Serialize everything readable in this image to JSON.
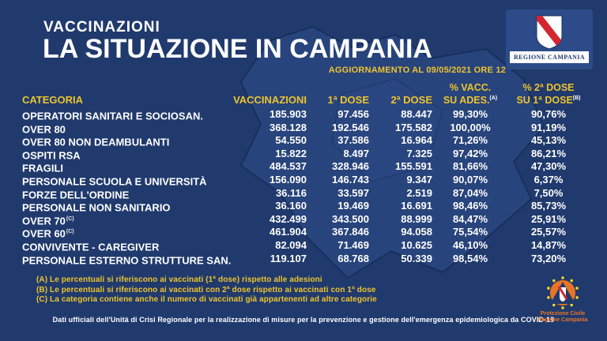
{
  "colors": {
    "background": "#203a6d",
    "accent_yellow": "#eec32e",
    "text_white": "#ffffff",
    "crest_red": "#d22630",
    "logo_panel_blue": "#2c4b88",
    "civil_protection_orange": "#e87425"
  },
  "header": {
    "kicker": "VACCINAZIONI",
    "title": "LA SITUAZIONE IN CAMPANIA",
    "update": "AGGIORNAMENTO AL 09/05/2021 ORE 12"
  },
  "region_logo": {
    "label": "REGIONE CAMPANIA"
  },
  "table": {
    "head": {
      "categoria": "CATEGORIA",
      "vaccinazioni": "VACCINAZIONI",
      "dose1": "1ª DOSE",
      "dose2": "2ª DOSE",
      "pct_vacc_l1": "% VACC.",
      "pct_vacc_l2": "SU ADES.",
      "pct_vacc_sup": "(A)",
      "pct_dose_l1": "% 2ª DOSE",
      "pct_dose_l2": "SU 1ª DOSE",
      "pct_dose_sup": "(B)"
    },
    "rows": [
      {
        "categoria": "OPERATORI SANITARI E SOCIOSAN.",
        "sup": "",
        "vaccinazioni": "185.903",
        "dose1": "97.456",
        "dose2": "88.447",
        "pct_vacc": "99,30%",
        "pct_dose": "90,76%"
      },
      {
        "categoria": "OVER 80",
        "sup": "",
        "vaccinazioni": "368.128",
        "dose1": "192.546",
        "dose2": "175.582",
        "pct_vacc": "100,00%",
        "pct_dose": "91,19%"
      },
      {
        "categoria": "OVER 80 NON DEAMBULANTI",
        "sup": "",
        "vaccinazioni": "54.550",
        "dose1": "37.586",
        "dose2": "16.964",
        "pct_vacc": "71,26%",
        "pct_dose": "45,13%"
      },
      {
        "categoria": "OSPITI RSA",
        "sup": "",
        "vaccinazioni": "15.822",
        "dose1": "8.497",
        "dose2": "7.325",
        "pct_vacc": "97,42%",
        "pct_dose": "86,21%"
      },
      {
        "categoria": "FRAGILI",
        "sup": "",
        "vaccinazioni": "484.537",
        "dose1": "328.946",
        "dose2": "155.591",
        "pct_vacc": "81,66%",
        "pct_dose": "47,30%"
      },
      {
        "categoria": "PERSONALE SCUOLA E UNIVERSITÀ",
        "sup": "",
        "vaccinazioni": "156.090",
        "dose1": "146.743",
        "dose2": "9.347",
        "pct_vacc": "90,07%",
        "pct_dose": "6,37%"
      },
      {
        "categoria": "FORZE DELL'ORDINE",
        "sup": "",
        "vaccinazioni": "36.116",
        "dose1": "33.597",
        "dose2": "2.519",
        "pct_vacc": "87,04%",
        "pct_dose": "7,50%"
      },
      {
        "categoria": "PERSONALE NON SANITARIO",
        "sup": "",
        "vaccinazioni": "36.160",
        "dose1": "19.469",
        "dose2": "16.691",
        "pct_vacc": "98,46%",
        "pct_dose": "85,73%"
      },
      {
        "categoria": "OVER 70",
        "sup": "(C)",
        "vaccinazioni": "432.499",
        "dose1": "343.500",
        "dose2": "88.999",
        "pct_vacc": "84,47%",
        "pct_dose": "25,91%"
      },
      {
        "categoria": "OVER 60",
        "sup": "(C)",
        "vaccinazioni": "461.904",
        "dose1": "367.846",
        "dose2": "94.058",
        "pct_vacc": "75,54%",
        "pct_dose": "25,57%"
      },
      {
        "categoria": "CONVIVENTE - CAREGIVER",
        "sup": "",
        "vaccinazioni": "82.094",
        "dose1": "71.469",
        "dose2": "10.625",
        "pct_vacc": "46,10%",
        "pct_dose": "14,87%"
      },
      {
        "categoria": "PERSONALE ESTERNO STRUTTURE SAN.",
        "sup": "",
        "vaccinazioni": "119.107",
        "dose1": "68.768",
        "dose2": "50.339",
        "pct_vacc": "98,54%",
        "pct_dose": "73,20%"
      }
    ]
  },
  "footnotes": [
    "(A) Le percentuali si riferiscono ai vaccinati (1ª dose) rispetto alle adesioni",
    "(B) Le percentuali si riferiscono ai vaccinati con 2ª dose rispetto ai vaccinati con 1ª dose",
    "(C) La categoria contiene anche il numero di vaccinati già appartenenti ad altre categorie"
  ],
  "footer": {
    "text": "Dati ufficiali dell'Unità di Crisi Regionale per la realizzazione di misure per la prevenzione e gestione dell'emergenza epidemiologica da COVID-19"
  },
  "civil_protection_logo": {
    "line1": "Protezione Civile",
    "line2": "Regione Campania"
  },
  "chart_data": {
    "type": "table",
    "title": "VACCINAZIONI - LA SITUAZIONE IN CAMPANIA",
    "updated": "AGGIORNAMENTO AL 09/05/2021 ORE 12",
    "columns": [
      "CATEGORIA",
      "VACCINAZIONI",
      "1ª DOSE",
      "2ª DOSE",
      "% VACC. SU ADES. (A)",
      "% 2ª DOSE SU 1ª DOSE (B)"
    ],
    "rows": [
      [
        "OPERATORI SANITARI E SOCIOSAN.",
        185903,
        97456,
        88447,
        "99,30%",
        "90,76%"
      ],
      [
        "OVER 80",
        368128,
        192546,
        175582,
        "100,00%",
        "91,19%"
      ],
      [
        "OVER 80 NON DEAMBULANTI",
        54550,
        37586,
        16964,
        "71,26%",
        "45,13%"
      ],
      [
        "OSPITI RSA",
        15822,
        8497,
        7325,
        "97,42%",
        "86,21%"
      ],
      [
        "FRAGILI",
        484537,
        328946,
        155591,
        "81,66%",
        "47,30%"
      ],
      [
        "PERSONALE SCUOLA E UNIVERSITÀ",
        156090,
        146743,
        9347,
        "90,07%",
        "6,37%"
      ],
      [
        "FORZE DELL'ORDINE",
        36116,
        33597,
        2519,
        "87,04%",
        "7,50%"
      ],
      [
        "PERSONALE NON SANITARIO",
        36160,
        19469,
        16691,
        "98,46%",
        "85,73%"
      ],
      [
        "OVER 70 (C)",
        432499,
        343500,
        88999,
        "84,47%",
        "25,91%"
      ],
      [
        "OVER 60 (C)",
        461904,
        367846,
        94058,
        "75,54%",
        "25,57%"
      ],
      [
        "CONVIVENTE - CAREGIVER",
        82094,
        71469,
        10625,
        "46,10%",
        "14,87%"
      ],
      [
        "PERSONALE ESTERNO STRUTTURE SAN.",
        119107,
        68768,
        50339,
        "98,54%",
        "73,20%"
      ]
    ]
  }
}
